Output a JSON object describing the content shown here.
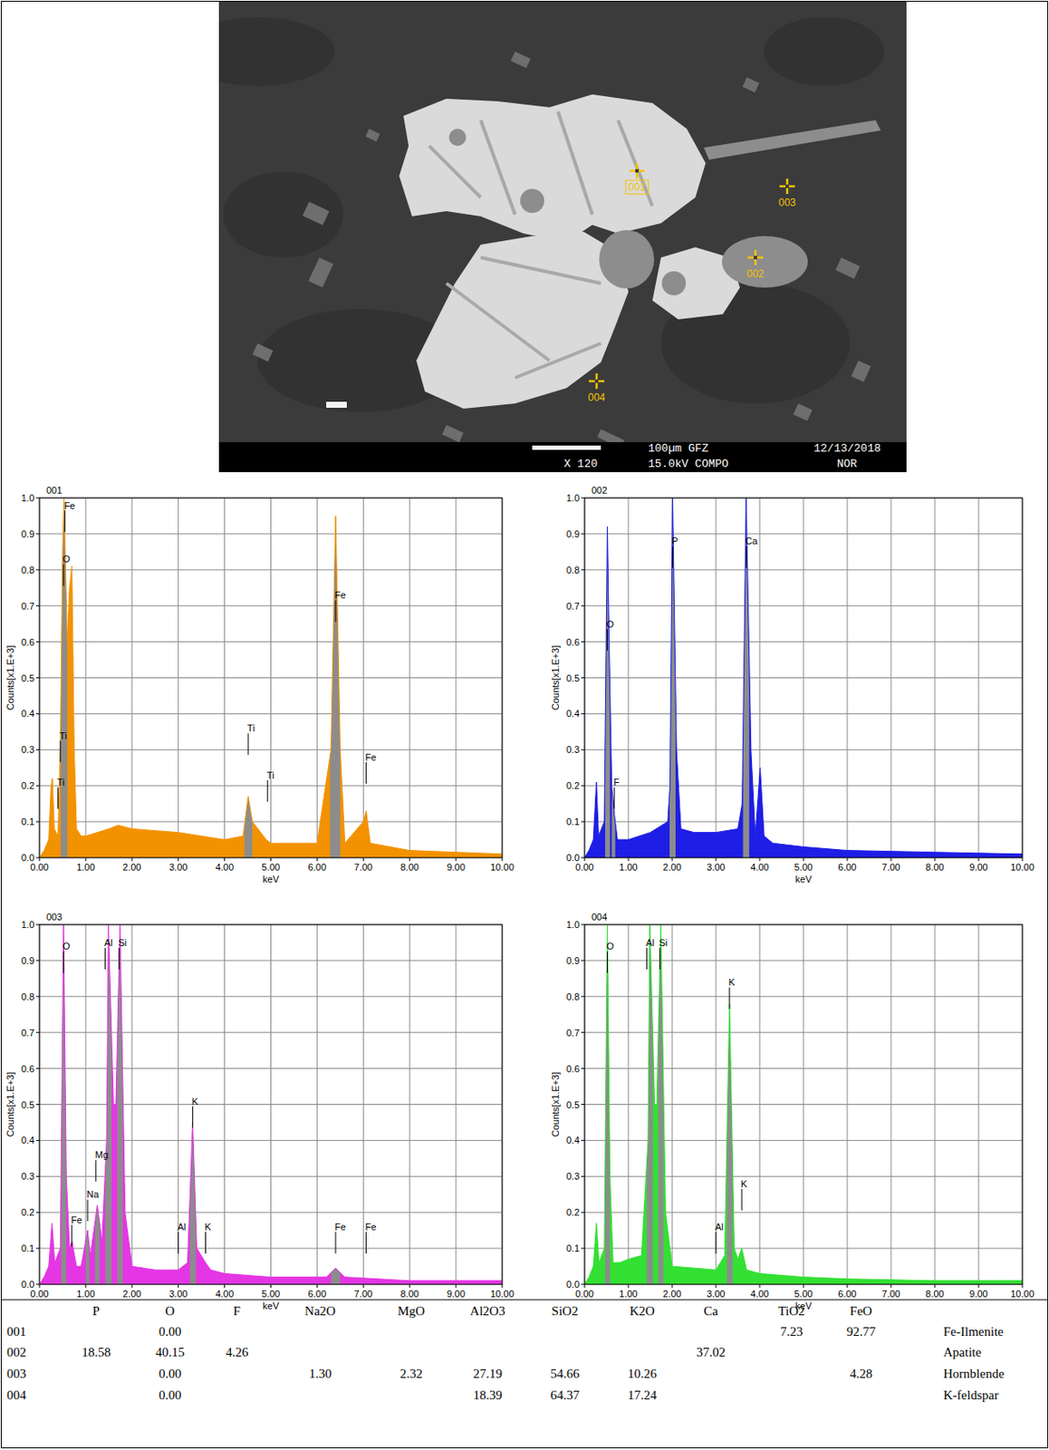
{
  "image": {
    "points": [
      "001",
      "002",
      "003",
      "004"
    ],
    "info": [
      "100µm GFZ",
      "12/13/2018",
      "X 120",
      "15.0kV COMPO",
      "NOR"
    ]
  },
  "chart_data": [
    {
      "type": "area",
      "title": "001",
      "x_label": "keV",
      "y_label": "Counts[x1.E+3]",
      "color": "#f39200",
      "grid": true,
      "xlim": [
        0,
        10
      ],
      "ylim": [
        0,
        1
      ],
      "xticks": [
        {
          "value": 0,
          "label": "0.00"
        },
        {
          "value": 1,
          "label": "1.00"
        },
        {
          "value": 2,
          "label": "2.00"
        },
        {
          "value": 3,
          "label": "3.00"
        },
        {
          "value": 4,
          "label": "4.00"
        },
        {
          "value": 5,
          "label": "5.00"
        },
        {
          "value": 6,
          "label": "6.00"
        },
        {
          "value": 7,
          "label": "7.00"
        },
        {
          "value": 8,
          "label": "8.00"
        },
        {
          "value": 9,
          "label": "9.00"
        },
        {
          "value": 10,
          "label": "10.00"
        }
      ],
      "yticks": [
        {
          "value": 0,
          "label": "0.0"
        },
        {
          "value": 0.1,
          "label": "0.1"
        },
        {
          "value": 0.2,
          "label": "0.2"
        },
        {
          "value": 0.3,
          "label": "0.3"
        },
        {
          "value": 0.4,
          "label": "0.4"
        },
        {
          "value": 0.5,
          "label": "0.5"
        },
        {
          "value": 0.6,
          "label": "0.6"
        },
        {
          "value": 0.7,
          "label": "0.7"
        },
        {
          "value": 0.8,
          "label": "0.8"
        },
        {
          "value": 0.9,
          "label": "0.9"
        },
        {
          "value": 1,
          "label": "1.0"
        }
      ],
      "x": [
        0,
        0.1,
        0.2,
        0.25,
        0.28,
        0.32,
        0.4,
        0.45,
        0.5,
        0.53,
        0.6,
        0.65,
        0.7,
        0.75,
        0.8,
        0.9,
        1.0,
        1.5,
        1.7,
        2.0,
        3.0,
        4.0,
        4.4,
        4.51,
        4.6,
        4.9,
        5.0,
        6.0,
        6.3,
        6.4,
        6.5,
        6.6,
        7.0,
        7.06,
        7.15,
        8.0,
        9.0,
        10.0
      ],
      "values": [
        0,
        0.02,
        0.05,
        0.2,
        0.22,
        0.08,
        0.06,
        0.3,
        0.85,
        1.0,
        0.6,
        0.75,
        0.81,
        0.3,
        0.08,
        0.06,
        0.06,
        0.08,
        0.09,
        0.08,
        0.07,
        0.05,
        0.06,
        0.17,
        0.1,
        0.05,
        0.04,
        0.04,
        0.3,
        0.95,
        0.3,
        0.04,
        0.1,
        0.13,
        0.04,
        0.02,
        0.015,
        0.01
      ],
      "peak_regions": [
        {
          "x0": 0.46,
          "x1": 0.6
        },
        {
          "x0": 4.43,
          "x1": 4.6
        },
        {
          "x0": 6.28,
          "x1": 6.5
        }
      ],
      "annotations": [
        {
          "text": "Fe",
          "x": 0.55,
          "y": 0.97
        },
        {
          "text": "O",
          "x": 0.52,
          "y": 0.82
        },
        {
          "text": "Ti",
          "x": 0.45,
          "y": 0.33
        },
        {
          "text": "Ti",
          "x": 0.4,
          "y": 0.2
        },
        {
          "text": "Ti",
          "x": 4.51,
          "y": 0.35
        },
        {
          "text": "Ti",
          "x": 4.93,
          "y": 0.22
        },
        {
          "text": "Fe",
          "x": 6.4,
          "y": 0.72
        },
        {
          "text": "Fe",
          "x": 7.06,
          "y": 0.27
        }
      ]
    },
    {
      "type": "area",
      "title": "002",
      "x_label": "keV",
      "y_label": "Counts[x1.E+3]",
      "color": "#1e1ee6",
      "grid": true,
      "xlim": [
        0,
        10
      ],
      "ylim": [
        0,
        1
      ],
      "xticks": [
        {
          "value": 0,
          "label": "0.00"
        },
        {
          "value": 1,
          "label": "1.00"
        },
        {
          "value": 2,
          "label": "2.00"
        },
        {
          "value": 3,
          "label": "3.00"
        },
        {
          "value": 4,
          "label": "4.00"
        },
        {
          "value": 5,
          "label": "5.00"
        },
        {
          "value": 6,
          "label": "6.00"
        },
        {
          "value": 7,
          "label": "7.00"
        },
        {
          "value": 8,
          "label": "8.00"
        },
        {
          "value": 9,
          "label": "9.00"
        },
        {
          "value": 10,
          "label": "10.00"
        }
      ],
      "yticks": [
        {
          "value": 0,
          "label": "0.0"
        },
        {
          "value": 0.1,
          "label": "0.1"
        },
        {
          "value": 0.2,
          "label": "0.2"
        },
        {
          "value": 0.3,
          "label": "0.3"
        },
        {
          "value": 0.4,
          "label": "0.4"
        },
        {
          "value": 0.5,
          "label": "0.5"
        },
        {
          "value": 0.6,
          "label": "0.6"
        },
        {
          "value": 0.7,
          "label": "0.7"
        },
        {
          "value": 0.8,
          "label": "0.8"
        },
        {
          "value": 0.9,
          "label": "0.9"
        },
        {
          "value": 1,
          "label": "1.0"
        }
      ],
      "x": [
        0,
        0.1,
        0.2,
        0.27,
        0.32,
        0.45,
        0.52,
        0.56,
        0.62,
        0.68,
        0.75,
        1.0,
        1.5,
        1.9,
        1.95,
        2.01,
        2.1,
        2.2,
        2.5,
        3.0,
        3.5,
        3.6,
        3.69,
        3.8,
        3.9,
        4.01,
        4.1,
        4.3,
        5.0,
        6.0,
        8.0,
        10.0
      ],
      "values": [
        0,
        0.02,
        0.05,
        0.21,
        0.06,
        0.1,
        0.92,
        0.6,
        0.2,
        0.12,
        0.05,
        0.05,
        0.07,
        0.1,
        0.2,
        1.0,
        0.3,
        0.08,
        0.07,
        0.07,
        0.08,
        0.15,
        1.0,
        0.3,
        0.06,
        0.25,
        0.06,
        0.04,
        0.03,
        0.02,
        0.015,
        0.01
      ],
      "peak_regions": [
        {
          "x0": 0.47,
          "x1": 0.58
        },
        {
          "x0": 0.62,
          "x1": 0.7
        },
        {
          "x0": 1.94,
          "x1": 2.08
        },
        {
          "x0": 3.62,
          "x1": 3.76
        }
      ],
      "annotations": [
        {
          "text": "O",
          "x": 0.52,
          "y": 0.64
        },
        {
          "text": "F",
          "x": 0.68,
          "y": 0.2
        },
        {
          "text": "P",
          "x": 2.01,
          "y": 0.87
        },
        {
          "text": "Ca",
          "x": 3.69,
          "y": 0.87
        }
      ]
    },
    {
      "type": "area",
      "title": "003",
      "x_label": "keV",
      "y_label": "Counts[x1.E+3]",
      "color": "#e436e4",
      "grid": true,
      "xlim": [
        0,
        10
      ],
      "ylim": [
        0,
        1
      ],
      "xticks": [
        {
          "value": 0,
          "label": "0.00"
        },
        {
          "value": 1,
          "label": "1.00"
        },
        {
          "value": 2,
          "label": "2.00"
        },
        {
          "value": 3,
          "label": "3.00"
        },
        {
          "value": 4,
          "label": "4.00"
        },
        {
          "value": 5,
          "label": "5.00"
        },
        {
          "value": 6,
          "label": "6.00"
        },
        {
          "value": 7,
          "label": "7.00"
        },
        {
          "value": 8,
          "label": "8.00"
        },
        {
          "value": 9,
          "label": "9.00"
        },
        {
          "value": 10,
          "label": "10.00"
        }
      ],
      "yticks": [
        {
          "value": 0,
          "label": "0.0"
        },
        {
          "value": 0.1,
          "label": "0.1"
        },
        {
          "value": 0.2,
          "label": "0.2"
        },
        {
          "value": 0.3,
          "label": "0.3"
        },
        {
          "value": 0.4,
          "label": "0.4"
        },
        {
          "value": 0.5,
          "label": "0.5"
        },
        {
          "value": 0.6,
          "label": "0.6"
        },
        {
          "value": 0.7,
          "label": "0.7"
        },
        {
          "value": 0.8,
          "label": "0.8"
        },
        {
          "value": 0.9,
          "label": "0.9"
        },
        {
          "value": 1,
          "label": "1.0"
        }
      ],
      "x": [
        0,
        0.1,
        0.2,
        0.27,
        0.33,
        0.45,
        0.52,
        0.58,
        0.65,
        0.7,
        0.8,
        0.9,
        1.04,
        1.1,
        1.25,
        1.35,
        1.45,
        1.49,
        1.6,
        1.65,
        1.74,
        1.85,
        2.0,
        2.5,
        3.0,
        3.2,
        3.31,
        3.4,
        3.59,
        3.7,
        4.0,
        5.0,
        6.2,
        6.4,
        6.6,
        8.0,
        10.0
      ],
      "values": [
        0,
        0.02,
        0.05,
        0.17,
        0.06,
        0.1,
        1.0,
        0.3,
        0.1,
        0.12,
        0.05,
        0.05,
        0.15,
        0.08,
        0.22,
        0.12,
        0.4,
        1.0,
        0.5,
        0.5,
        1.0,
        0.2,
        0.05,
        0.04,
        0.04,
        0.06,
        0.45,
        0.1,
        0.06,
        0.04,
        0.03,
        0.02,
        0.02,
        0.045,
        0.02,
        0.01,
        0.01
      ],
      "peak_regions": [
        {
          "x0": 0.47,
          "x1": 0.58
        },
        {
          "x0": 1.0,
          "x1": 1.08
        },
        {
          "x0": 1.2,
          "x1": 1.3
        },
        {
          "x0": 1.42,
          "x1": 1.56
        },
        {
          "x0": 1.68,
          "x1": 1.8
        },
        {
          "x0": 3.25,
          "x1": 3.38
        },
        {
          "x0": 6.3,
          "x1": 6.5
        }
      ],
      "annotations": [
        {
          "text": "O",
          "x": 0.52,
          "y": 0.93
        },
        {
          "text": "Fe",
          "x": 0.7,
          "y": 0.17
        },
        {
          "text": "Na",
          "x": 1.04,
          "y": 0.24
        },
        {
          "text": "Mg",
          "x": 1.22,
          "y": 0.35
        },
        {
          "text": "Al",
          "x": 1.42,
          "y": 0.94
        },
        {
          "text": "Si",
          "x": 1.72,
          "y": 0.94
        },
        {
          "text": "K",
          "x": 3.31,
          "y": 0.5
        },
        {
          "text": "Al",
          "x": 3.0,
          "y": 0.15
        },
        {
          "text": "K",
          "x": 3.59,
          "y": 0.15
        },
        {
          "text": "Fe",
          "x": 6.4,
          "y": 0.15
        },
        {
          "text": "Fe",
          "x": 7.06,
          "y": 0.15
        }
      ]
    },
    {
      "type": "area",
      "title": "004",
      "x_label": "keV",
      "y_label": "Counts[x1.E+3]",
      "color": "#33e033",
      "grid": true,
      "xlim": [
        0,
        10
      ],
      "ylim": [
        0,
        1
      ],
      "xticks": [
        {
          "value": 0,
          "label": "0.00"
        },
        {
          "value": 1,
          "label": "1.00"
        },
        {
          "value": 2,
          "label": "2.00"
        },
        {
          "value": 3,
          "label": "3.00"
        },
        {
          "value": 4,
          "label": "4.00"
        },
        {
          "value": 5,
          "label": "5.00"
        },
        {
          "value": 6,
          "label": "6.00"
        },
        {
          "value": 7,
          "label": "7.00"
        },
        {
          "value": 8,
          "label": "8.00"
        },
        {
          "value": 9,
          "label": "9.00"
        },
        {
          "value": 10,
          "label": "10.00"
        }
      ],
      "yticks": [
        {
          "value": 0,
          "label": "0.0"
        },
        {
          "value": 0.1,
          "label": "0.1"
        },
        {
          "value": 0.2,
          "label": "0.2"
        },
        {
          "value": 0.3,
          "label": "0.3"
        },
        {
          "value": 0.4,
          "label": "0.4"
        },
        {
          "value": 0.5,
          "label": "0.5"
        },
        {
          "value": 0.6,
          "label": "0.6"
        },
        {
          "value": 0.7,
          "label": "0.7"
        },
        {
          "value": 0.8,
          "label": "0.8"
        },
        {
          "value": 0.9,
          "label": "0.9"
        },
        {
          "value": 1,
          "label": "1.0"
        }
      ],
      "x": [
        0,
        0.1,
        0.2,
        0.27,
        0.33,
        0.45,
        0.52,
        0.58,
        0.65,
        0.8,
        1.0,
        1.3,
        1.45,
        1.49,
        1.6,
        1.65,
        1.74,
        1.85,
        2.0,
        3.0,
        3.2,
        3.31,
        3.42,
        3.5,
        3.59,
        3.7,
        4.0,
        5.0,
        6.0,
        8.0,
        10.0
      ],
      "values": [
        0,
        0.02,
        0.05,
        0.17,
        0.06,
        0.1,
        1.0,
        0.3,
        0.06,
        0.06,
        0.07,
        0.08,
        0.4,
        1.0,
        0.5,
        0.5,
        1.0,
        0.2,
        0.05,
        0.04,
        0.08,
        0.78,
        0.1,
        0.07,
        0.1,
        0.04,
        0.03,
        0.02,
        0.015,
        0.01,
        0.01
      ],
      "peak_regions": [
        {
          "x0": 0.47,
          "x1": 0.58
        },
        {
          "x0": 1.42,
          "x1": 1.56
        },
        {
          "x0": 1.68,
          "x1": 1.8
        },
        {
          "x0": 3.25,
          "x1": 3.38
        }
      ],
      "annotations": [
        {
          "text": "O",
          "x": 0.52,
          "y": 0.93
        },
        {
          "text": "Al",
          "x": 1.42,
          "y": 0.94
        },
        {
          "text": "Si",
          "x": 1.72,
          "y": 0.94
        },
        {
          "text": "K",
          "x": 3.31,
          "y": 0.83
        },
        {
          "text": "Al",
          "x": 3.0,
          "y": 0.15
        },
        {
          "text": "K",
          "x": 3.59,
          "y": 0.27
        }
      ]
    }
  ],
  "table": {
    "header": [
      null,
      "P",
      "O",
      "F",
      "Na2O",
      "MgO",
      "Al2O3",
      "SiO2",
      "K2O",
      "Ca",
      "TiO2",
      "FeO",
      null
    ],
    "rows": [
      [
        "001",
        null,
        "0.00",
        null,
        null,
        null,
        null,
        null,
        null,
        null,
        "7.23",
        "92.77",
        "Fe-Ilmenite"
      ],
      [
        "002",
        "18.58",
        "40.15",
        "4.26",
        null,
        null,
        null,
        null,
        null,
        "37.02",
        null,
        null,
        "Apatite"
      ],
      [
        "003",
        null,
        "0.00",
        null,
        "1.30",
        "2.32",
        "27.19",
        "54.66",
        "10.26",
        null,
        null,
        "4.28",
        "Hornblende"
      ],
      [
        "004",
        null,
        "0.00",
        null,
        null,
        null,
        "18.39",
        "64.37",
        "17.24",
        null,
        null,
        null,
        "K-feldspar"
      ]
    ]
  }
}
